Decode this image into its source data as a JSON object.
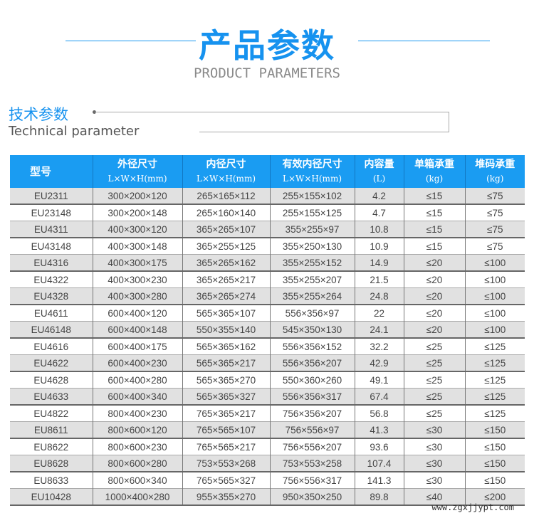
{
  "header": {
    "title": "产品参数",
    "subtitle": "PRODUCT PARAMETERS"
  },
  "section": {
    "title_cn": "技术参数",
    "title_en": "Technical parameter"
  },
  "colors": {
    "accent": "#1a9cf2",
    "row_alt": "#e1e1e1"
  },
  "table": {
    "headers": [
      {
        "main": "型号",
        "sub": ""
      },
      {
        "main": "外径尺寸",
        "sub": "L×W×H(mm)"
      },
      {
        "main": "内径尺寸",
        "sub": "L×W×H(mm)"
      },
      {
        "main": "有效内径尺寸",
        "sub": "L×W×H(mm)"
      },
      {
        "main": "内容量",
        "sub": "(L)"
      },
      {
        "main": "单箱承重",
        "sub": "(kg)"
      },
      {
        "main": "堆码承重",
        "sub": "(kg)"
      }
    ],
    "rows": [
      [
        "EU2311",
        "300×200×120",
        "265×165×112",
        "255×155×102",
        "4.2",
        "≤15",
        "≤75"
      ],
      [
        "EU23148",
        "300×200×148",
        "265×160×140",
        "255×155×125",
        "4.7",
        "≤15",
        "≤75"
      ],
      [
        "EU4311",
        "400×300×120",
        "365×265×107",
        "355×255×97",
        "10.8",
        "≤15",
        "≤75"
      ],
      [
        "EU43148",
        "400×300×148",
        "365×255×125",
        "355×250×130",
        "10.9",
        "≤15",
        "≤75"
      ],
      [
        "EU4316",
        "400×300×175",
        "365×265×162",
        "355×255×152",
        "14.9",
        "≤20",
        "≤100"
      ],
      [
        "EU4322",
        "400×300×230",
        "365×265×217",
        "355×255×207",
        "21.5",
        "≤20",
        "≤100"
      ],
      [
        "EU4328",
        "400×300×280",
        "365×265×274",
        "355×255×264",
        "24.8",
        "≤20",
        "≤100"
      ],
      [
        "EU4611",
        "600×400×120",
        "565×365×107",
        "556×356×97",
        "22",
        "≤20",
        "≤100"
      ],
      [
        "EU46148",
        "600×400×148",
        "550×355×140",
        "545×350×130",
        "24.1",
        "≤20",
        "≤100"
      ],
      [
        "EU4616",
        "600×400×175",
        "565×365×162",
        "556×356×152",
        "32.2",
        "≤25",
        "≤125"
      ],
      [
        "EU4622",
        "600×400×230",
        "565×365×217",
        "556×356×207",
        "42.9",
        "≤25",
        "≤125"
      ],
      [
        "EU4628",
        "600×400×280",
        "565×365×270",
        "550×360×260",
        "49.1",
        "≤25",
        "≤125"
      ],
      [
        "EU4633",
        "600×400×340",
        "565×365×327",
        "556×356×317",
        "67.4",
        "≤25",
        "≤125"
      ],
      [
        "EU4822",
        "800×400×230",
        "765×365×217",
        "756×356×207",
        "56.8",
        "≤25",
        "≤125"
      ],
      [
        "EU8611",
        "800×600×120",
        "765×565×107",
        "756×556×97",
        "41.3",
        "≤30",
        "≤150"
      ],
      [
        "EU8622",
        "800×600×230",
        "765×565×217",
        "756×556×207",
        "93.6",
        "≤30",
        "≤150"
      ],
      [
        "EU8628",
        "800×600×280",
        "753×553×268",
        "753×553×258",
        "107.4",
        "≤30",
        "≤150"
      ],
      [
        "EU8633",
        "800×600×340",
        "765×565×327",
        "756×556×317",
        "141.3",
        "≤30",
        "≤150"
      ],
      [
        "EU10428",
        "1000×400×280",
        "955×355×270",
        "950×350×250",
        "89.8",
        "≤40",
        "≤200"
      ]
    ]
  },
  "watermark": "www.zgxjjypt.com"
}
